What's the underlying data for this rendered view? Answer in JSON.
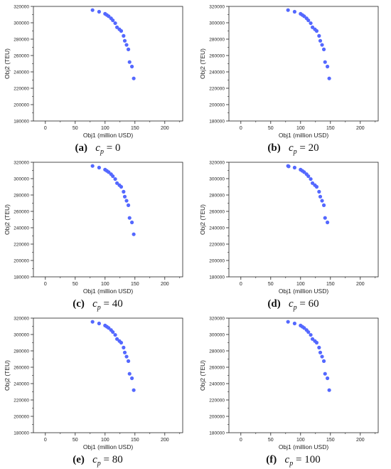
{
  "colors": {
    "marker": "#5468ff",
    "axis": "#222222"
  },
  "chart_data": [
    {
      "type": "scatter",
      "label_letter": "(a)",
      "cp_value": "0",
      "xlabel": "Obj1 (million USD)",
      "ylabel": "Obj2 (TEU)",
      "xlim": [
        -20,
        230
      ],
      "ylim": [
        180000,
        320000
      ],
      "xticks": [
        "0",
        "50",
        "100",
        "150",
        "200"
      ],
      "yticks": [
        "180000",
        "200000",
        "220000",
        "240000",
        "260000",
        "280000",
        "300000",
        "320000"
      ],
      "points": [
        [
          79,
          315500
        ],
        [
          90,
          313500
        ],
        [
          100,
          311000
        ],
        [
          103,
          309500
        ],
        [
          106,
          308000
        ],
        [
          110,
          305500
        ],
        [
          113,
          303000
        ],
        [
          117,
          299500
        ],
        [
          120,
          294500
        ],
        [
          124,
          292000
        ],
        [
          127,
          290000
        ],
        [
          131,
          284000
        ],
        [
          133,
          278000
        ],
        [
          136,
          273000
        ],
        [
          139,
          267500
        ],
        [
          141,
          252000
        ],
        [
          145,
          246500
        ],
        [
          148,
          232000
        ]
      ]
    },
    {
      "type": "scatter",
      "label_letter": "(b)",
      "cp_value": "20",
      "xlabel": "Obj1 (million USD)",
      "ylabel": "Obj2 (TEU)",
      "xlim": [
        -20,
        230
      ],
      "ylim": [
        180000,
        320000
      ],
      "xticks": [
        "0",
        "50",
        "100",
        "150",
        "200"
      ],
      "yticks": [
        "180000",
        "200000",
        "220000",
        "240000",
        "260000",
        "280000",
        "300000",
        "320000"
      ],
      "points": [
        [
          79,
          315500
        ],
        [
          90,
          313500
        ],
        [
          100,
          311000
        ],
        [
          103,
          309500
        ],
        [
          106,
          308000
        ],
        [
          110,
          305500
        ],
        [
          113,
          303000
        ],
        [
          117,
          299500
        ],
        [
          120,
          294500
        ],
        [
          124,
          292000
        ],
        [
          127,
          290000
        ],
        [
          131,
          284000
        ],
        [
          133,
          278000
        ],
        [
          136,
          273000
        ],
        [
          139,
          267500
        ],
        [
          141,
          252000
        ],
        [
          145,
          246500
        ],
        [
          148,
          232000
        ]
      ]
    },
    {
      "type": "scatter",
      "label_letter": "(c)",
      "cp_value": "40",
      "xlabel": "Obj1 (million USD)",
      "ylabel": "Obj2 (TEU)",
      "xlim": [
        -20,
        230
      ],
      "ylim": [
        180000,
        320000
      ],
      "xticks": [
        "0",
        "50",
        "100",
        "150",
        "200"
      ],
      "yticks": [
        "180000",
        "200000",
        "220000",
        "240000",
        "260000",
        "280000",
        "300000",
        "320000"
      ],
      "points": [
        [
          79,
          315500
        ],
        [
          90,
          313500
        ],
        [
          100,
          311000
        ],
        [
          103,
          309500
        ],
        [
          106,
          308000
        ],
        [
          110,
          305500
        ],
        [
          113,
          303000
        ],
        [
          117,
          299500
        ],
        [
          120,
          294500
        ],
        [
          124,
          292000
        ],
        [
          127,
          290000
        ],
        [
          131,
          284000
        ],
        [
          133,
          278000
        ],
        [
          136,
          273000
        ],
        [
          139,
          267500
        ],
        [
          141,
          252000
        ],
        [
          145,
          246500
        ],
        [
          148,
          232000
        ]
      ]
    },
    {
      "type": "scatter",
      "label_letter": "(d)",
      "cp_value": "60",
      "xlabel": "Obj1 (million USD)",
      "ylabel": "Obj2 (TEU)",
      "xlim": [
        -20,
        230
      ],
      "ylim": [
        180000,
        320000
      ],
      "xticks": [
        "0",
        "50",
        "100",
        "150",
        "200"
      ],
      "yticks": [
        "180000",
        "200000",
        "220000",
        "240000",
        "260000",
        "280000",
        "300000",
        "320000"
      ],
      "points": [
        [
          79,
          315500
        ],
        [
          80,
          315000
        ],
        [
          90,
          313500
        ],
        [
          100,
          311000
        ],
        [
          103,
          309500
        ],
        [
          106,
          308000
        ],
        [
          110,
          305500
        ],
        [
          113,
          303000
        ],
        [
          117,
          299500
        ],
        [
          120,
          294500
        ],
        [
          124,
          292000
        ],
        [
          127,
          290000
        ],
        [
          131,
          284000
        ],
        [
          133,
          278000
        ],
        [
          136,
          273000
        ],
        [
          139,
          267500
        ],
        [
          141,
          252000
        ],
        [
          145,
          246500
        ]
      ]
    },
    {
      "type": "scatter",
      "label_letter": "(e)",
      "cp_value": "80",
      "xlabel": "Obj1 (million USD)",
      "ylabel": "Obj2 (TEU)",
      "xlim": [
        -20,
        230
      ],
      "ylim": [
        180000,
        320000
      ],
      "xticks": [
        "0",
        "50",
        "100",
        "150",
        "200"
      ],
      "yticks": [
        "180000",
        "200000",
        "220000",
        "240000",
        "260000",
        "280000",
        "300000",
        "320000"
      ],
      "points": [
        [
          79,
          315500
        ],
        [
          90,
          313500
        ],
        [
          100,
          311000
        ],
        [
          103,
          309500
        ],
        [
          106,
          308000
        ],
        [
          110,
          305500
        ],
        [
          113,
          303000
        ],
        [
          117,
          299500
        ],
        [
          120,
          294500
        ],
        [
          124,
          292000
        ],
        [
          127,
          290000
        ],
        [
          131,
          284000
        ],
        [
          133,
          278000
        ],
        [
          136,
          273000
        ],
        [
          139,
          267500
        ],
        [
          141,
          252000
        ],
        [
          145,
          246500
        ],
        [
          148,
          232000
        ]
      ]
    },
    {
      "type": "scatter",
      "label_letter": "(f)",
      "cp_value": "100",
      "xlabel": "Obj1 (million USD)",
      "ylabel": "Obj2 (TEU)",
      "xlim": [
        -20,
        230
      ],
      "ylim": [
        180000,
        320000
      ],
      "xticks": [
        "0",
        "50",
        "100",
        "150",
        "200"
      ],
      "yticks": [
        "180000",
        "200000",
        "220000",
        "240000",
        "260000",
        "280000",
        "300000",
        "320000"
      ],
      "points": [
        [
          79,
          315500
        ],
        [
          90,
          313500
        ],
        [
          100,
          311000
        ],
        [
          103,
          309500
        ],
        [
          106,
          308000
        ],
        [
          110,
          305500
        ],
        [
          113,
          303000
        ],
        [
          117,
          299500
        ],
        [
          120,
          294500
        ],
        [
          124,
          292000
        ],
        [
          127,
          290000
        ],
        [
          131,
          284000
        ],
        [
          133,
          278000
        ],
        [
          136,
          273000
        ],
        [
          139,
          267500
        ],
        [
          141,
          252000
        ],
        [
          145,
          246500
        ],
        [
          148,
          232000
        ]
      ]
    }
  ]
}
